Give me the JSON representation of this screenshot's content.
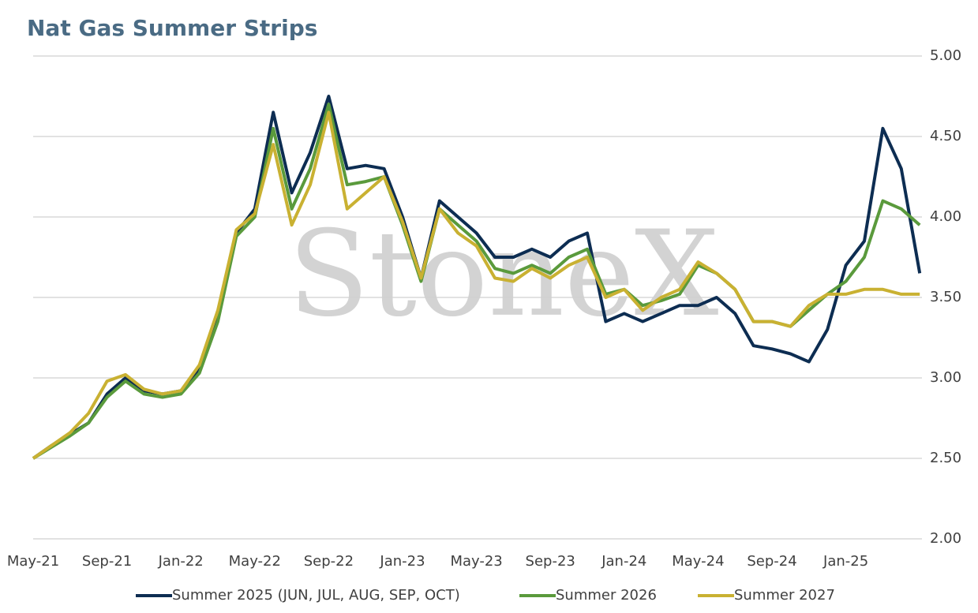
{
  "chart_data": {
    "type": "line",
    "title": "Nat Gas Summer Strips",
    "watermark": "StoneX",
    "categories": [
      "May-21",
      null,
      null,
      null,
      "Sep-21",
      null,
      null,
      null,
      "Jan-22",
      null,
      null,
      null,
      "May-22",
      null,
      null,
      null,
      "Sep-22",
      null,
      null,
      null,
      "Jan-23",
      null,
      null,
      null,
      "May-23",
      null,
      null,
      null,
      "Sep-23",
      null,
      null,
      null,
      "Jan-24",
      null,
      null,
      null,
      "May-24",
      null,
      null,
      null,
      "Sep-24",
      null,
      null,
      null,
      "Jan-25",
      null,
      null,
      null,
      null
    ],
    "series": [
      {
        "name": "Summer 2025 (JUN, JUL, AUG, SEP, OCT)",
        "color": "#0d2d52",
        "values": [
          2.5,
          2.58,
          2.65,
          2.72,
          2.9,
          3.0,
          2.92,
          2.9,
          2.92,
          3.05,
          3.4,
          3.9,
          4.05,
          4.65,
          4.15,
          4.4,
          4.75,
          4.3,
          4.32,
          4.3,
          4.0,
          3.62,
          4.1,
          4.0,
          3.9,
          3.75,
          3.75,
          3.8,
          3.75,
          3.85,
          3.9,
          3.35,
          3.4,
          3.35,
          3.4,
          3.45,
          3.45,
          3.5,
          3.4,
          3.2,
          3.18,
          3.15,
          3.1,
          3.3,
          3.7,
          3.85,
          4.55,
          4.3,
          3.65
        ]
      },
      {
        "name": "Summer 2026",
        "color": "#5a9a3c",
        "values": [
          2.5,
          2.57,
          2.64,
          2.72,
          2.88,
          2.98,
          2.9,
          2.88,
          2.9,
          3.03,
          3.35,
          3.88,
          4.0,
          4.55,
          4.05,
          4.3,
          4.7,
          4.2,
          4.22,
          4.25,
          3.95,
          3.6,
          4.05,
          3.95,
          3.85,
          3.68,
          3.65,
          3.7,
          3.65,
          3.75,
          3.8,
          3.52,
          3.55,
          3.45,
          3.48,
          3.52,
          3.7,
          3.65,
          3.55,
          3.35,
          3.35,
          3.32,
          3.42,
          3.52,
          3.6,
          3.75,
          4.1,
          4.05,
          3.95
        ]
      },
      {
        "name": "Summer 2027",
        "color": "#c9b132",
        "values": [
          2.5,
          2.58,
          2.66,
          2.78,
          2.98,
          3.02,
          2.93,
          2.9,
          2.92,
          3.08,
          3.42,
          3.92,
          4.02,
          4.45,
          3.95,
          4.2,
          4.65,
          4.05,
          4.15,
          4.25,
          3.97,
          3.62,
          4.05,
          3.9,
          3.82,
          3.62,
          3.6,
          3.68,
          3.62,
          3.7,
          3.75,
          3.5,
          3.55,
          3.42,
          3.5,
          3.55,
          3.72,
          3.65,
          3.55,
          3.35,
          3.35,
          3.32,
          3.45,
          3.52,
          3.52,
          3.55,
          3.55,
          3.52,
          3.52
        ]
      }
    ],
    "ylim": [
      2,
      5
    ],
    "yticks": [
      {
        "value": 2,
        "label": "2.00"
      },
      {
        "value": 2.5,
        "label": "2.50"
      },
      {
        "value": 3,
        "label": "3.00"
      },
      {
        "value": 3.5,
        "label": "3.50"
      },
      {
        "value": 4,
        "label": "4.00"
      },
      {
        "value": 4.5,
        "label": "4.50"
      },
      {
        "value": 5,
        "label": "5.00"
      }
    ],
    "grid": true,
    "legend": "bottom"
  }
}
